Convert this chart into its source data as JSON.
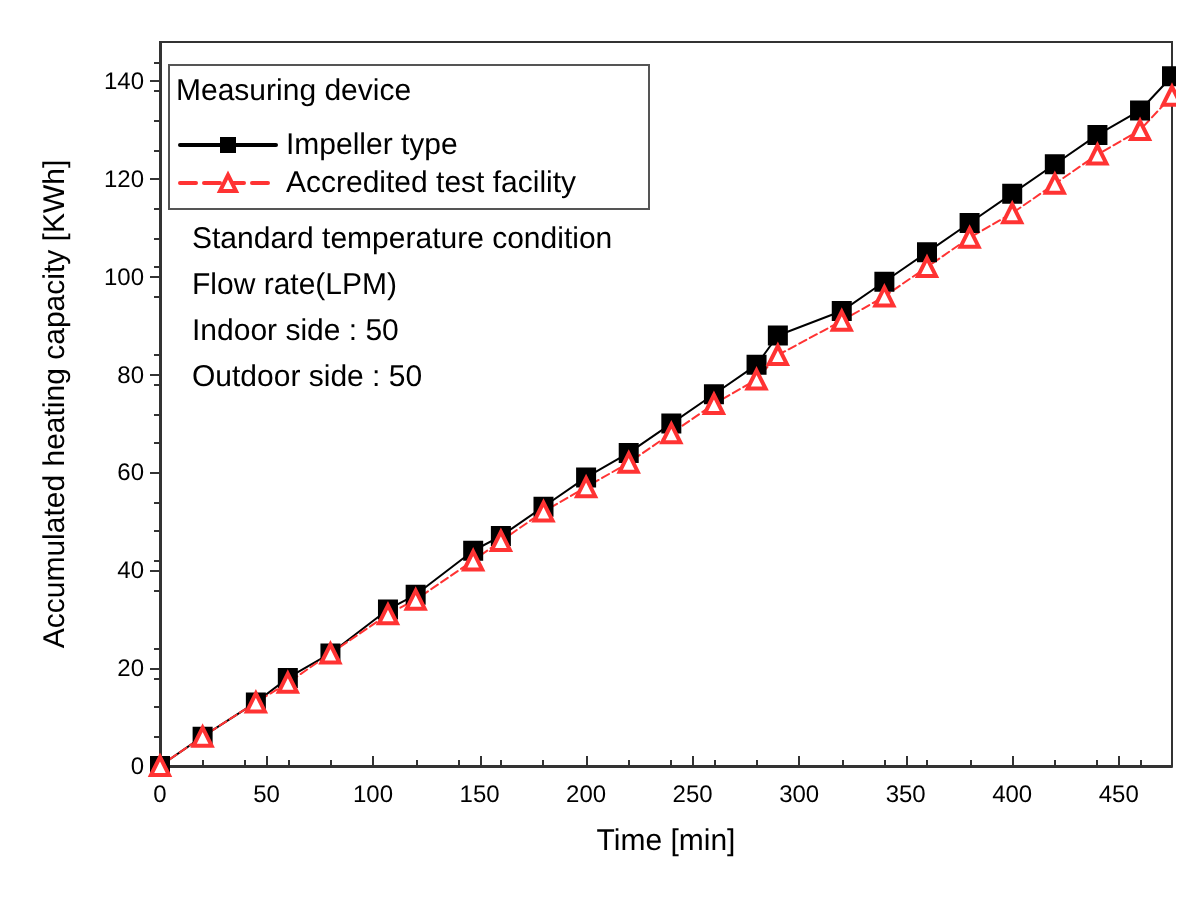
{
  "chart_data": {
    "type": "line",
    "xlabel": "Time [min]",
    "ylabel": "Accumulated heating capacity [KWh]",
    "legend_title": "Measuring device",
    "legend": "top left",
    "x": [
      0,
      20,
      45,
      60,
      80,
      107,
      120,
      147,
      160,
      180,
      200,
      220,
      240,
      260,
      280,
      290,
      320,
      340,
      360,
      380,
      400,
      420,
      440,
      460,
      475
    ],
    "series": [
      {
        "name": "Impeller type",
        "color": "#000000",
        "marker": "square",
        "line_style": "solid",
        "values": [
          0,
          6,
          13,
          18,
          23,
          32,
          35,
          44,
          47,
          53,
          59,
          64,
          70,
          76,
          82,
          88,
          93,
          99,
          105,
          111,
          117,
          123,
          129,
          134,
          141
        ]
      },
      {
        "name": "Accredited test facility",
        "color": "#ff3333",
        "marker": "triangle",
        "line_style": "dashed",
        "values": [
          0,
          6,
          13,
          17,
          23,
          31,
          34,
          42,
          46,
          52,
          57,
          62,
          68,
          74,
          79,
          84,
          91,
          96,
          102,
          108,
          113,
          119,
          125,
          130,
          137
        ]
      }
    ],
    "annotations": [
      "Standard temperature condition",
      "Flow rate(LPM)",
      "Indoor side : 50",
      "Outdoor side : 50"
    ],
    "xlim": [
      0,
      475
    ],
    "xticks": [
      0,
      50,
      100,
      150,
      200,
      250,
      300,
      350,
      400,
      450
    ],
    "ylim": [
      0,
      148
    ],
    "yticks": [
      0,
      20,
      40,
      60,
      80,
      100,
      120,
      140
    ],
    "grid": false
  }
}
